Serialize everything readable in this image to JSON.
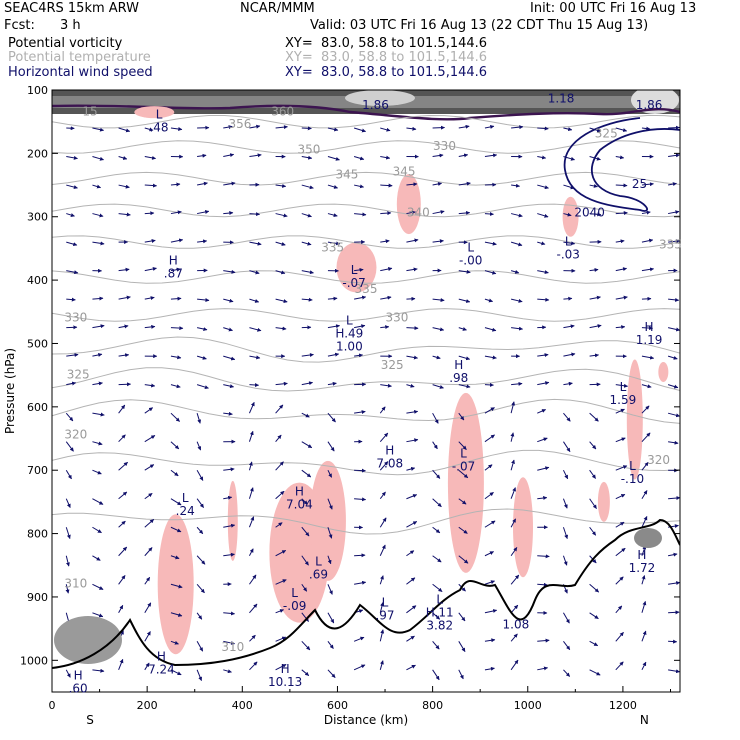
{
  "header": {
    "model": "SEAC4RS 15km ARW",
    "center": "NCAR/MMM",
    "init": "Init: 00 UTC Fri 16 Aug 13",
    "fcst_label": "Fcst:",
    "fcst_value": "3 h",
    "valid": "Valid: 03 UTC Fri 16 Aug 13 (22 CDT Thu 15 Aug 13)",
    "fields": [
      {
        "name": "Potential vorticity",
        "xy": "XY=  83.0, 58.8 to 101.5,144.6",
        "color": "#000000"
      },
      {
        "name": "Potential temperature",
        "xy": "XY=  83.0, 58.8 to 101.5,144.6",
        "color": "#b4b4b4"
      },
      {
        "name": "Horizontal wind speed",
        "xy": "XY=  83.0, 58.8 to 101.5,144.6",
        "color": "#10106a"
      }
    ]
  },
  "chart_data": {
    "type": "cross-section",
    "xlabel": "Distance (km)",
    "ylabel": "Pressure (hPa)",
    "xlim": [
      0,
      1320
    ],
    "ylim": [
      1050,
      100
    ],
    "x_ticks": [
      "0",
      "200",
      "400",
      "600",
      "800",
      "1000",
      "1200"
    ],
    "y_ticks": [
      "100",
      "200",
      "300",
      "400",
      "500",
      "600",
      "700",
      "800",
      "900",
      "1000"
    ],
    "end_labels": {
      "left": "S",
      "right": "N"
    },
    "colors": {
      "theta": "#b4b4b4",
      "wind": "#10106a",
      "pv_contour": "#3c1450",
      "pv_positive": "#f7b9b9",
      "terrain": "#000000"
    },
    "theta_labels": [
      {
        "x": 80,
        "p": 140,
        "text": "15"
      },
      {
        "x": 395,
        "p": 160,
        "text": "356"
      },
      {
        "x": 485,
        "p": 140,
        "text": "360"
      },
      {
        "x": 540,
        "p": 200,
        "text": "350"
      },
      {
        "x": 620,
        "p": 240,
        "text": "345"
      },
      {
        "x": 740,
        "p": 235,
        "text": "345"
      },
      {
        "x": 770,
        "p": 300,
        "text": "340"
      },
      {
        "x": 825,
        "p": 195,
        "text": "330"
      },
      {
        "x": 1165,
        "p": 175,
        "text": "325"
      },
      {
        "x": 1300,
        "p": 350,
        "text": "335"
      },
      {
        "x": 660,
        "p": 420,
        "text": "335"
      },
      {
        "x": 590,
        "p": 355,
        "text": "335"
      },
      {
        "x": 725,
        "p": 465,
        "text": "330"
      },
      {
        "x": 50,
        "p": 465,
        "text": "330"
      },
      {
        "x": 715,
        "p": 540,
        "text": "325"
      },
      {
        "x": 55,
        "p": 555,
        "text": "325"
      },
      {
        "x": 50,
        "p": 650,
        "text": "320"
      },
      {
        "x": 1275,
        "p": 690,
        "text": "320"
      },
      {
        "x": 50,
        "p": 885,
        "text": "310"
      },
      {
        "x": 380,
        "p": 985,
        "text": "310"
      }
    ],
    "pv_labels": [
      {
        "x": 225,
        "p": 145,
        "text": "L\n.48"
      },
      {
        "x": 255,
        "p": 375,
        "text": "H\n.87"
      },
      {
        "x": 635,
        "p": 390,
        "text": "L\n-.07"
      },
      {
        "x": 625,
        "p": 470,
        "text": "L\nH.49\n1.00"
      },
      {
        "x": 880,
        "p": 355,
        "text": "L\n-.00"
      },
      {
        "x": 1085,
        "p": 345,
        "text": "L\n-.03"
      },
      {
        "x": 1130,
        "p": 300,
        "text": "2040"
      },
      {
        "x": 1255,
        "p": 480,
        "text": "H\n1.19"
      },
      {
        "x": 855,
        "p": 540,
        "text": "H\n.98"
      },
      {
        "x": 710,
        "p": 675,
        "text": "H\n7.08"
      },
      {
        "x": 865,
        "p": 680,
        "text": "L\n-.07"
      },
      {
        "x": 1200,
        "p": 575,
        "text": "L\n1.59"
      },
      {
        "x": 1220,
        "p": 700,
        "text": "L\n-.10"
      },
      {
        "x": 520,
        "p": 740,
        "text": "H\n7.04"
      },
      {
        "x": 280,
        "p": 750,
        "text": "L\n.24"
      },
      {
        "x": 560,
        "p": 850,
        "text": "L\n.69"
      },
      {
        "x": 510,
        "p": 900,
        "text": "L\n-.09"
      },
      {
        "x": 700,
        "p": 915,
        "text": "L\n.97"
      },
      {
        "x": 815,
        "p": 910,
        "text": "L\nH.11\n3.82"
      },
      {
        "x": 975,
        "p": 950,
        "text": "1.08"
      },
      {
        "x": 1240,
        "p": 840,
        "text": "H\n1.72"
      },
      {
        "x": 230,
        "p": 1000,
        "text": "H\n7.24"
      },
      {
        "x": 490,
        "p": 1020,
        "text": "H\n10.13"
      },
      {
        "x": 55,
        "p": 1030,
        "text": "H\n.60"
      },
      {
        "x": 680,
        "p": 130,
        "text": "1.86"
      },
      {
        "x": 1070,
        "p": 120,
        "text": "1.18"
      },
      {
        "x": 1255,
        "p": 130,
        "text": "1.86"
      }
    ],
    "wind_speed_labels": [
      {
        "x": 1235,
        "p": 255,
        "text": "25"
      }
    ]
  }
}
